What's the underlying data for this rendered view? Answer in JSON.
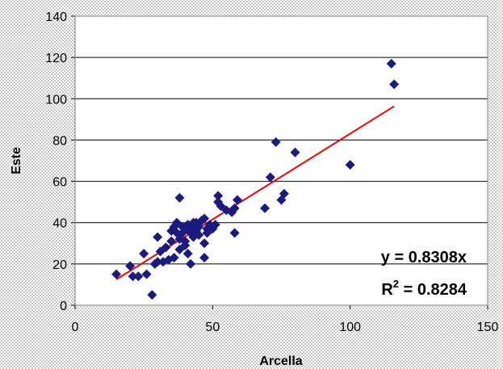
{
  "chart_data": {
    "type": "scatter",
    "title": "",
    "xlabel": "Arcella",
    "ylabel": "Este",
    "xlim": [
      0,
      150
    ],
    "ylim": [
      0,
      140
    ],
    "xticks": [
      0,
      50,
      100,
      150
    ],
    "yticks": [
      0,
      20,
      40,
      60,
      80,
      100,
      120,
      140
    ],
    "grid": "horizontal",
    "marker_color": "#1a1a80",
    "trendline_color": "#ff0000",
    "series": [
      {
        "points": [
          [
            15,
            15
          ],
          [
            20,
            19
          ],
          [
            21,
            14
          ],
          [
            23,
            14
          ],
          [
            25,
            25
          ],
          [
            26,
            15
          ],
          [
            28,
            5
          ],
          [
            29,
            20
          ],
          [
            30,
            21
          ],
          [
            30,
            33
          ],
          [
            31,
            26
          ],
          [
            32,
            21
          ],
          [
            33,
            28
          ],
          [
            34,
            22
          ],
          [
            35,
            36
          ],
          [
            35,
            31
          ],
          [
            36,
            23
          ],
          [
            36,
            38
          ],
          [
            37,
            40
          ],
          [
            37,
            35
          ],
          [
            38,
            27
          ],
          [
            38,
            32
          ],
          [
            38,
            52
          ],
          [
            39,
            38
          ],
          [
            39,
            35
          ],
          [
            40,
            29
          ],
          [
            40,
            37
          ],
          [
            40,
            31
          ],
          [
            41,
            25
          ],
          [
            41,
            39
          ],
          [
            42,
            20
          ],
          [
            42,
            38
          ],
          [
            42,
            35
          ],
          [
            43,
            33
          ],
          [
            43,
            40
          ],
          [
            44,
            36
          ],
          [
            44,
            40
          ],
          [
            45,
            34
          ],
          [
            45,
            38
          ],
          [
            46,
            41
          ],
          [
            47,
            23
          ],
          [
            47,
            30
          ],
          [
            47,
            42
          ],
          [
            48,
            35
          ],
          [
            48,
            37
          ],
          [
            49,
            39
          ],
          [
            50,
            37
          ],
          [
            51,
            39
          ],
          [
            52,
            53
          ],
          [
            52,
            50
          ],
          [
            53,
            48
          ],
          [
            55,
            46
          ],
          [
            57,
            45
          ],
          [
            58,
            47
          ],
          [
            58,
            35
          ],
          [
            59,
            51
          ],
          [
            69,
            47
          ],
          [
            71,
            62
          ],
          [
            73,
            79
          ],
          [
            75,
            51
          ],
          [
            76,
            54
          ],
          [
            80,
            74
          ],
          [
            100,
            68
          ],
          [
            115,
            117
          ],
          [
            116,
            107
          ]
        ]
      }
    ],
    "trendline": {
      "slope": 0.8308,
      "x_range": [
        15,
        116
      ]
    },
    "annotations": {
      "equation": "y = 0.8308x",
      "r2_label": "R",
      "r2_exp": "2",
      "r2_value": " = 0.8284"
    }
  }
}
